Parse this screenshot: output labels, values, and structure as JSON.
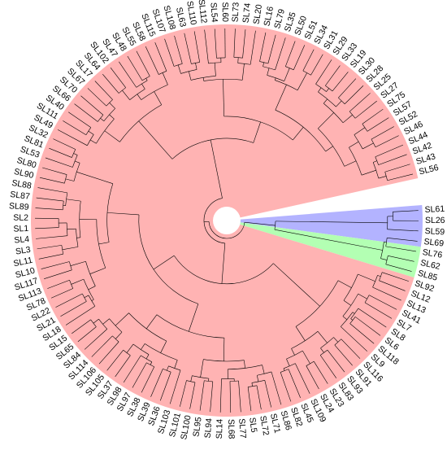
{
  "tree": {
    "colors": {
      "red_clade": "#ffb3b3",
      "green_clade": "#b3ffb3",
      "blue_clade": "#b3b3ff",
      "line": "#000000",
      "background": "#ffffff"
    },
    "leaves": [
      {
        "label": "SL61",
        "clade": "blue"
      },
      {
        "label": "SL26",
        "clade": "blue"
      },
      {
        "label": "SL59",
        "clade": "blue"
      },
      {
        "label": "SL69",
        "clade": "blue"
      },
      {
        "label": "SL76",
        "clade": "green"
      },
      {
        "label": "SL62",
        "clade": "green"
      },
      {
        "label": "SL85",
        "clade": "green"
      },
      {
        "label": "SL92",
        "clade": "red"
      },
      {
        "label": "SL12",
        "clade": "red"
      },
      {
        "label": "SL13",
        "clade": "red"
      },
      {
        "label": "SL41",
        "clade": "red"
      },
      {
        "label": "SL7",
        "clade": "red"
      },
      {
        "label": "SL8",
        "clade": "red"
      },
      {
        "label": "SL6",
        "clade": "red"
      },
      {
        "label": "SL118",
        "clade": "red"
      },
      {
        "label": "SL9",
        "clade": "red"
      },
      {
        "label": "SL116",
        "clade": "red"
      },
      {
        "label": "SL91",
        "clade": "red"
      },
      {
        "label": "SL93",
        "clade": "red"
      },
      {
        "label": "SL83",
        "clade": "red"
      },
      {
        "label": "SL23",
        "clade": "red"
      },
      {
        "label": "SL24",
        "clade": "red"
      },
      {
        "label": "SL109",
        "clade": "red"
      },
      {
        "label": "SL45",
        "clade": "red"
      },
      {
        "label": "SL82",
        "clade": "red"
      },
      {
        "label": "SL86",
        "clade": "red"
      },
      {
        "label": "SL71",
        "clade": "red"
      },
      {
        "label": "SL72",
        "clade": "red"
      },
      {
        "label": "SL5",
        "clade": "red"
      },
      {
        "label": "SL77",
        "clade": "red"
      },
      {
        "label": "SL68",
        "clade": "red"
      },
      {
        "label": "SL14",
        "clade": "red"
      },
      {
        "label": "SL94",
        "clade": "red"
      },
      {
        "label": "SL95",
        "clade": "red"
      },
      {
        "label": "SL100",
        "clade": "red"
      },
      {
        "label": "SL101",
        "clade": "red"
      },
      {
        "label": "SL103",
        "clade": "red"
      },
      {
        "label": "SL36",
        "clade": "red"
      },
      {
        "label": "SL39",
        "clade": "red"
      },
      {
        "label": "SL38",
        "clade": "red"
      },
      {
        "label": "SL97",
        "clade": "red"
      },
      {
        "label": "SL98",
        "clade": "red"
      },
      {
        "label": "SL37",
        "clade": "red"
      },
      {
        "label": "SL105",
        "clade": "red"
      },
      {
        "label": "SL106",
        "clade": "red"
      },
      {
        "label": "SL114",
        "clade": "red"
      },
      {
        "label": "SL84",
        "clade": "red"
      },
      {
        "label": "SL65",
        "clade": "red"
      },
      {
        "label": "SL15",
        "clade": "red"
      },
      {
        "label": "SL18",
        "clade": "red"
      },
      {
        "label": "SL21",
        "clade": "red"
      },
      {
        "label": "SL22",
        "clade": "red"
      },
      {
        "label": "SL78",
        "clade": "red"
      },
      {
        "label": "SL113",
        "clade": "red"
      },
      {
        "label": "SL117",
        "clade": "red"
      },
      {
        "label": "SL10",
        "clade": "red"
      },
      {
        "label": "SL11",
        "clade": "red"
      },
      {
        "label": "SL3",
        "clade": "red"
      },
      {
        "label": "SL4",
        "clade": "red"
      },
      {
        "label": "SL1",
        "clade": "red"
      },
      {
        "label": "SL2",
        "clade": "red"
      },
      {
        "label": "SL89",
        "clade": "red"
      },
      {
        "label": "SL87",
        "clade": "red"
      },
      {
        "label": "SL88",
        "clade": "red"
      },
      {
        "label": "SL90",
        "clade": "red"
      },
      {
        "label": "SL80",
        "clade": "red"
      },
      {
        "label": "SL53",
        "clade": "red"
      },
      {
        "label": "SL81",
        "clade": "red"
      },
      {
        "label": "SL32",
        "clade": "red"
      },
      {
        "label": "SL49",
        "clade": "red"
      },
      {
        "label": "SL111",
        "clade": "red"
      },
      {
        "label": "SL40",
        "clade": "red"
      },
      {
        "label": "SL66",
        "clade": "red"
      },
      {
        "label": "SL70",
        "clade": "red"
      },
      {
        "label": "SL67",
        "clade": "red"
      },
      {
        "label": "SL17",
        "clade": "red"
      },
      {
        "label": "SL64",
        "clade": "red"
      },
      {
        "label": "SL102",
        "clade": "red"
      },
      {
        "label": "SL47",
        "clade": "red"
      },
      {
        "label": "SL48",
        "clade": "red"
      },
      {
        "label": "SL55",
        "clade": "red"
      },
      {
        "label": "SL58",
        "clade": "red"
      },
      {
        "label": "SL115",
        "clade": "red"
      },
      {
        "label": "SL107",
        "clade": "red"
      },
      {
        "label": "SL108",
        "clade": "red"
      },
      {
        "label": "SL63",
        "clade": "red"
      },
      {
        "label": "SL110",
        "clade": "red"
      },
      {
        "label": "SL112",
        "clade": "red"
      },
      {
        "label": "SL54",
        "clade": "red"
      },
      {
        "label": "SL60",
        "clade": "red"
      },
      {
        "label": "SL73",
        "clade": "red"
      },
      {
        "label": "SL74",
        "clade": "red"
      },
      {
        "label": "SL20",
        "clade": "red"
      },
      {
        "label": "SL16",
        "clade": "red"
      },
      {
        "label": "SL79",
        "clade": "red"
      },
      {
        "label": "SL35",
        "clade": "red"
      },
      {
        "label": "SL50",
        "clade": "red"
      },
      {
        "label": "SL51",
        "clade": "red"
      },
      {
        "label": "SL34",
        "clade": "red"
      },
      {
        "label": "SL31",
        "clade": "red"
      },
      {
        "label": "SL29",
        "clade": "red"
      },
      {
        "label": "SL33",
        "clade": "red"
      },
      {
        "label": "SL19",
        "clade": "red"
      },
      {
        "label": "SL30",
        "clade": "red"
      },
      {
        "label": "SL28",
        "clade": "red"
      },
      {
        "label": "SL25",
        "clade": "red"
      },
      {
        "label": "SL27",
        "clade": "red"
      },
      {
        "label": "SL75",
        "clade": "red"
      },
      {
        "label": "SL57",
        "clade": "red"
      },
      {
        "label": "SL52",
        "clade": "red"
      },
      {
        "label": "SL46",
        "clade": "red"
      },
      {
        "label": "SL44",
        "clade": "red"
      },
      {
        "label": "SL42",
        "clade": "red"
      },
      {
        "label": "SL43",
        "clade": "red"
      },
      {
        "label": "SL56",
        "clade": "red"
      }
    ]
  }
}
